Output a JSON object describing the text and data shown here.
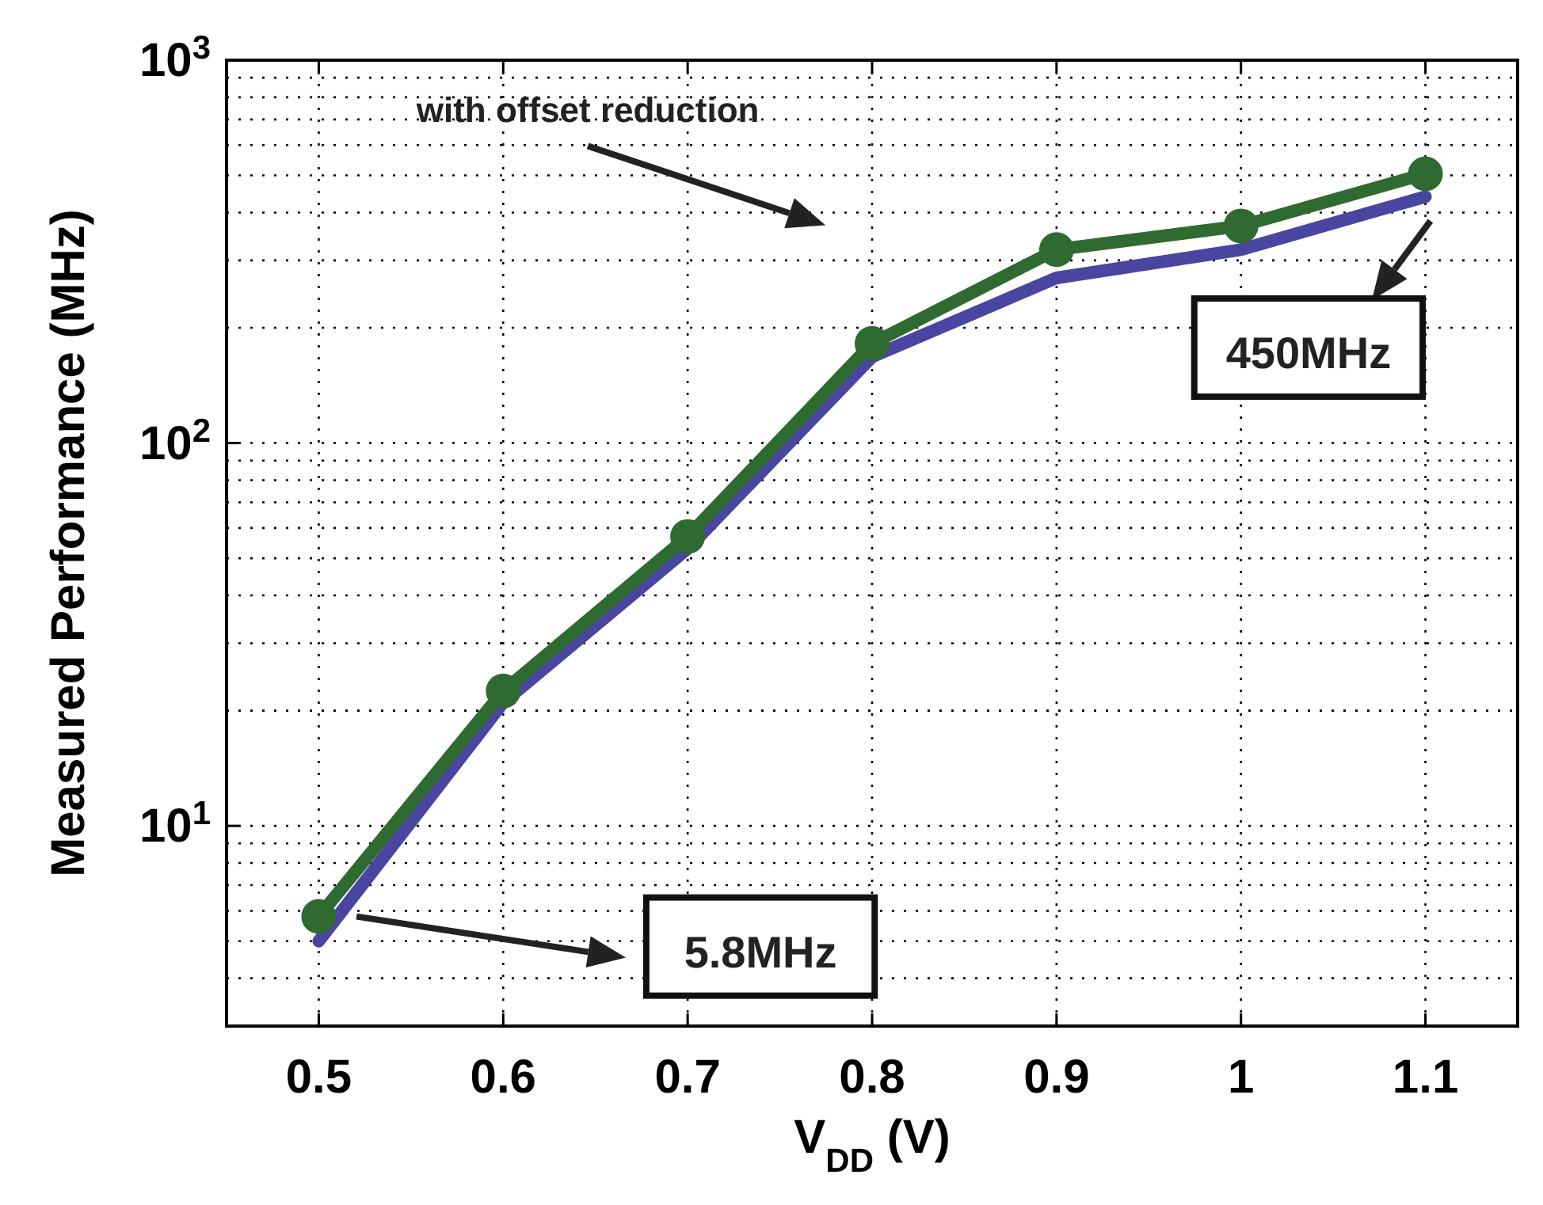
{
  "chart_data": {
    "type": "line",
    "xlabel": "V$_{DD}$ (V)",
    "ylabel": "Measured Performance (MHz)",
    "x": [
      0.5,
      0.6,
      0.7,
      0.8,
      0.9,
      1.0,
      1.1
    ],
    "series": [
      {
        "color": "#4a45a0",
        "values": [
          5.0,
          21,
          53,
          168,
          270,
          320,
          440
        ],
        "marker": "none"
      },
      {
        "color": "#2f6a30",
        "values": [
          5.8,
          22.5,
          57,
          182,
          320,
          369,
          505
        ],
        "marker": "circle"
      }
    ],
    "xlim": [
      0.45,
      1.15
    ],
    "xticks": [
      0.5,
      0.6,
      0.7,
      0.8,
      0.9,
      1,
      1.1
    ],
    "ylim": [
      3,
      1000
    ],
    "yticks": [
      {
        "value": 10,
        "label": "10$^{1}$"
      },
      {
        "value": 100,
        "label": "10$^{2}$"
      },
      {
        "value": 1000,
        "label": "10$^{3}$"
      }
    ],
    "log": true,
    "grid": true,
    "line_style": "solid",
    "annotations": [
      "with offset reduction",
      "450MHz",
      "5.8MHz"
    ]
  }
}
